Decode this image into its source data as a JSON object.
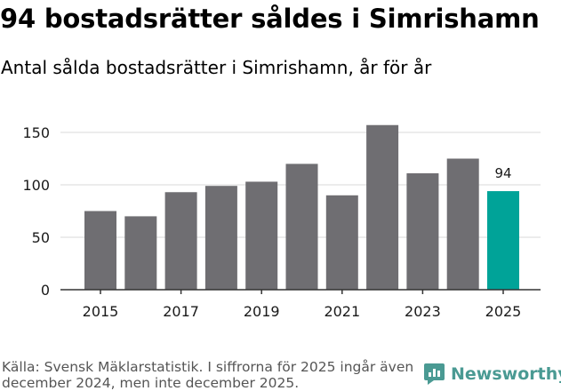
{
  "title": "94 bostadsrätter såldes i Simrishamn",
  "subtitle": "Antal sålda bostadsrätter i Simrishamn, år för år",
  "source_text": "Källa: Svensk Mäklarstatistik. I siffrorna för 2025 ingår även december 2024, men inte december 2025.",
  "logo_text": "Newsworthy",
  "colors": {
    "bar": "#6f6e72",
    "highlight": "#00a398",
    "logo": "#4a9a93"
  },
  "chart_data": {
    "type": "bar",
    "categories": [
      "2015",
      "2016",
      "2017",
      "2018",
      "2019",
      "2020",
      "2021",
      "2022",
      "2023",
      "2024",
      "2025"
    ],
    "values": [
      75,
      70,
      93,
      99,
      103,
      120,
      90,
      157,
      111,
      125,
      94
    ],
    "x_tick_labels": [
      "2015",
      "2017",
      "2019",
      "2021",
      "2023",
      "2025"
    ],
    "y_ticks": [
      0,
      50,
      100,
      150
    ],
    "ylim": [
      0,
      160
    ],
    "highlight_index": 10,
    "highlight_label": "94",
    "xlabel": "",
    "ylabel": ""
  }
}
